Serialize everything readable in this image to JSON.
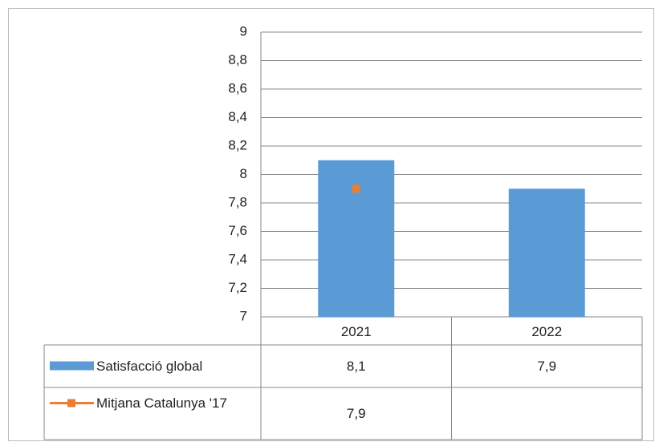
{
  "chart_data": {
    "type": "bar",
    "categories": [
      "2021",
      "2022"
    ],
    "series": [
      {
        "name": "Satisfacció global",
        "type": "bar",
        "color": "#5b9bd5",
        "values": [
          8.1,
          7.9
        ],
        "value_labels": [
          "8,1",
          "7,9"
        ]
      },
      {
        "name": "Mitjana Catalunya '17",
        "type": "line",
        "color": "#ed7d31",
        "values": [
          7.9,
          null
        ],
        "value_labels": [
          "7,9",
          null
        ]
      }
    ],
    "ylim": [
      7,
      9
    ],
    "yticks": [
      7,
      {
        "value": 7.2,
        "label": "7,2"
      },
      {
        "value": 7.4,
        "label": "7,4"
      },
      {
        "value": 7.6,
        "label": "7,6"
      },
      {
        "value": 7.8,
        "label": "7,8"
      },
      8,
      {
        "value": 8.2,
        "label": "8,2"
      },
      {
        "value": 8.4,
        "label": "8,4"
      },
      {
        "value": 8.6,
        "label": "8,6"
      },
      {
        "value": 8.8,
        "label": "8,8"
      },
      9
    ],
    "grid": true
  }
}
